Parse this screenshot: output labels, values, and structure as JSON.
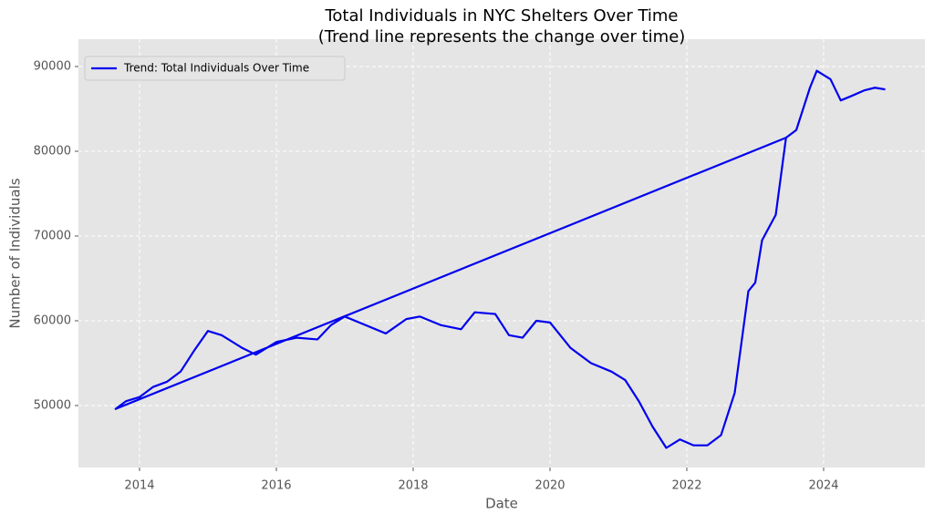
{
  "chart_data": {
    "type": "line",
    "title": "Total Individuals in NYC Shelters Over Time",
    "subtitle": "(Trend line represents the change over time)",
    "x_label": "Date",
    "y_label": "Number of Individuals",
    "x": [
      2023.45,
      2013.65,
      2013.8,
      2014.0,
      2014.2,
      2014.4,
      2014.6,
      2014.8,
      2015.0,
      2015.2,
      2015.5,
      2015.7,
      2016.0,
      2016.3,
      2016.6,
      2016.8,
      2017.0,
      2017.3,
      2017.6,
      2017.9,
      2018.1,
      2018.4,
      2018.7,
      2018.9,
      2019.2,
      2019.4,
      2019.6,
      2019.8,
      2020.0,
      2020.3,
      2020.6,
      2020.9,
      2021.1,
      2021.3,
      2021.5,
      2021.7,
      2021.9,
      2022.1,
      2022.3,
      2022.5,
      2022.7,
      2022.9,
      2023.0,
      2023.1,
      2023.3,
      2023.45,
      2023.6,
      2023.8,
      2023.9,
      2024.1,
      2024.25,
      2024.4,
      2024.6,
      2024.75,
      2024.9
    ],
    "series": [
      {
        "name": "Trend: Total Individuals Over Time",
        "color": "#0000ee",
        "values": [
          81600,
          49600,
          50500,
          51000,
          52200,
          52800,
          54000,
          56500,
          58800,
          58300,
          56800,
          56000,
          57500,
          58000,
          57800,
          59500,
          60500,
          59500,
          58500,
          60200,
          60500,
          59500,
          59000,
          61000,
          60800,
          58300,
          58000,
          60000,
          59800,
          56800,
          55000,
          54000,
          53000,
          50500,
          47500,
          45000,
          46000,
          45300,
          45300,
          46500,
          51500,
          63500,
          64500,
          69500,
          72500,
          81600,
          82500,
          87500,
          89500,
          88500,
          86000,
          86500,
          87200,
          87500,
          87300
        ]
      }
    ],
    "xlim": [
      2013.107,
      2025.48
    ],
    "xticks": [
      2014,
      2016,
      2018,
      2020,
      2022,
      2024
    ],
    "ylim": [
      42688,
      93226
    ],
    "yticks": [
      50000,
      60000,
      70000,
      80000,
      90000
    ],
    "grid": true,
    "legend": "upper left"
  }
}
